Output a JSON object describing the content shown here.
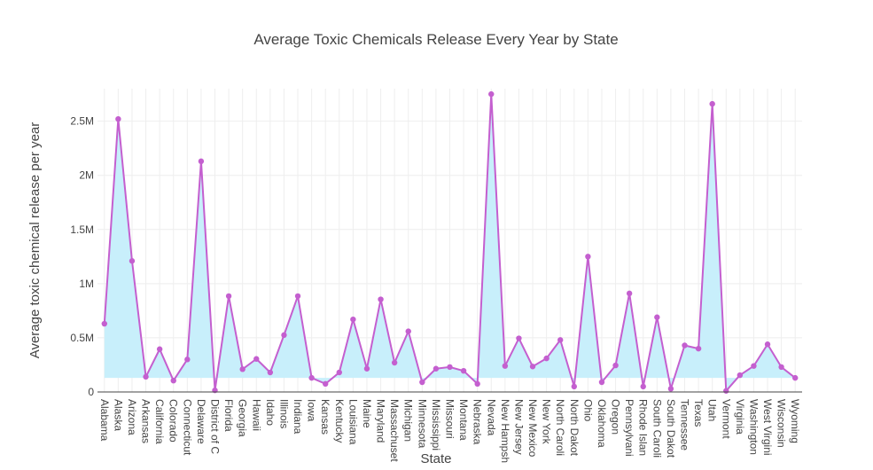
{
  "chart_data": {
    "type": "line",
    "title": "Average Toxic Chemicals Release Every Year by State",
    "xlabel": "State",
    "ylabel": "Average toxic chemical release per year",
    "ylim": [
      0,
      2800000
    ],
    "y_ticks": [
      {
        "value": 0,
        "label": "0"
      },
      {
        "value": 500000,
        "label": "0.5M"
      },
      {
        "value": 1000000,
        "label": "1M"
      },
      {
        "value": 1500000,
        "label": "1.5M"
      },
      {
        "value": 2000000,
        "label": "2M"
      },
      {
        "value": 2500000,
        "label": "2.5M"
      }
    ],
    "fill_baseline": 130000,
    "grid": true,
    "legend": "none",
    "colors": {
      "line": "#c45fcf",
      "marker": "#c45fcf",
      "fill": "#c8effb",
      "grid": "#eeeeee",
      "axis": "#444444"
    },
    "categories": [
      "Alabama",
      "Alaska",
      "Arizona",
      "Arkansas",
      "California",
      "Colorado",
      "Connecticut",
      "Delaware",
      "District of C",
      "Florida",
      "Georgia",
      "Hawaii",
      "Idaho",
      "Illinois",
      "Indiana",
      "Iowa",
      "Kansas",
      "Kentucky",
      "Louisiana",
      "Maine",
      "Maryland",
      "Massachuset",
      "Michigan",
      "Minnesota",
      "Mississippi",
      "Missouri",
      "Montana",
      "Nebraska",
      "Nevada",
      "New Hampsh",
      "New Jersey",
      "New Mexico",
      "New York",
      "North Caroli",
      "North Dakot",
      "Ohio",
      "Oklahoma",
      "Oregon",
      "Pennsylvani",
      "Rhode Islan",
      "South Caroli",
      "South Dakot",
      "Tennessee",
      "Texas",
      "Utah",
      "Vermont",
      "Virginia",
      "Washington",
      "West Virgini",
      "Wisconsin",
      "Wyoming"
    ],
    "values": [
      630000,
      2520000,
      1210000,
      140000,
      395000,
      105000,
      300000,
      2130000,
      15000,
      885000,
      210000,
      305000,
      180000,
      525000,
      885000,
      130000,
      75000,
      180000,
      670000,
      215000,
      855000,
      270000,
      560000,
      90000,
      215000,
      230000,
      195000,
      75000,
      2750000,
      240000,
      495000,
      235000,
      310000,
      480000,
      50000,
      1250000,
      90000,
      245000,
      910000,
      50000,
      690000,
      30000,
      430000,
      400000,
      2660000,
      10000,
      155000,
      240000,
      440000,
      230000,
      130000
    ]
  }
}
